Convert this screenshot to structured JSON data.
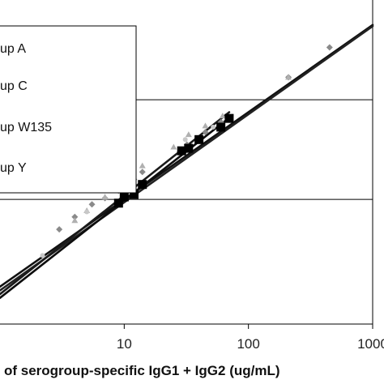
{
  "chart_data": {
    "type": "scatter",
    "xscale": "log",
    "xlim": [
      1,
      1000
    ],
    "x_ticks": [
      10,
      100,
      1000
    ],
    "x_tick_labels": [
      "10",
      "100",
      "1000"
    ],
    "xlabel": "of serogroup-specific IgG1 + IgG2 (ug/mL)",
    "grid": "horizontal",
    "legend_position": "top-left",
    "legend_entries": [
      "up A",
      "up C",
      "up W135",
      "up Y"
    ],
    "series": [
      {
        "name": "up A",
        "marker": "diamond",
        "color": "#8a8a8a",
        "x": [
          3,
          4,
          5.5,
          7,
          9,
          12,
          14,
          28,
          32,
          45,
          60,
          210,
          450
        ],
        "y": [
          0.76,
          0.86,
          0.96,
          1.01,
          1.07,
          1.16,
          1.22,
          1.38,
          1.44,
          1.54,
          1.62,
          1.98,
          2.22
        ]
      },
      {
        "name": "up C",
        "marker": "triangle",
        "color": "#b0b0b0",
        "x": [
          4,
          5,
          7,
          10,
          14,
          25,
          33,
          45,
          62,
          210
        ],
        "y": [
          0.83,
          0.91,
          1.02,
          1.14,
          1.27,
          1.42,
          1.52,
          1.59,
          1.67,
          1.98
        ]
      },
      {
        "name": "up W135",
        "marker": "circle",
        "color": "#c8c8c8",
        "x": [
          2.2,
          5,
          10,
          31,
          52
        ],
        "y": [
          0.55,
          0.9,
          1.15,
          1.48,
          1.58
        ]
      },
      {
        "name": "up Y",
        "marker": "square",
        "color": "#000000",
        "x": [
          9,
          10,
          12,
          14,
          29,
          33,
          40,
          60,
          70
        ],
        "y": [
          0.97,
          1.02,
          1.04,
          1.12,
          1.39,
          1.41,
          1.48,
          1.58,
          1.65
        ]
      }
    ],
    "fit_lines": [
      {
        "x": [
          1,
          1000
        ],
        "y": [
          0.3,
          2.4
        ],
        "color": "#111111"
      },
      {
        "x": [
          1,
          1000
        ],
        "y": [
          0.27,
          2.39
        ],
        "color": "#222222"
      },
      {
        "x": [
          1,
          70
        ],
        "y": [
          0.24,
          1.7
        ],
        "color": "#1a1a1a"
      },
      {
        "x": [
          1,
          65
        ],
        "y": [
          0.21,
          1.63
        ],
        "color": "#0d0d0d"
      }
    ]
  }
}
